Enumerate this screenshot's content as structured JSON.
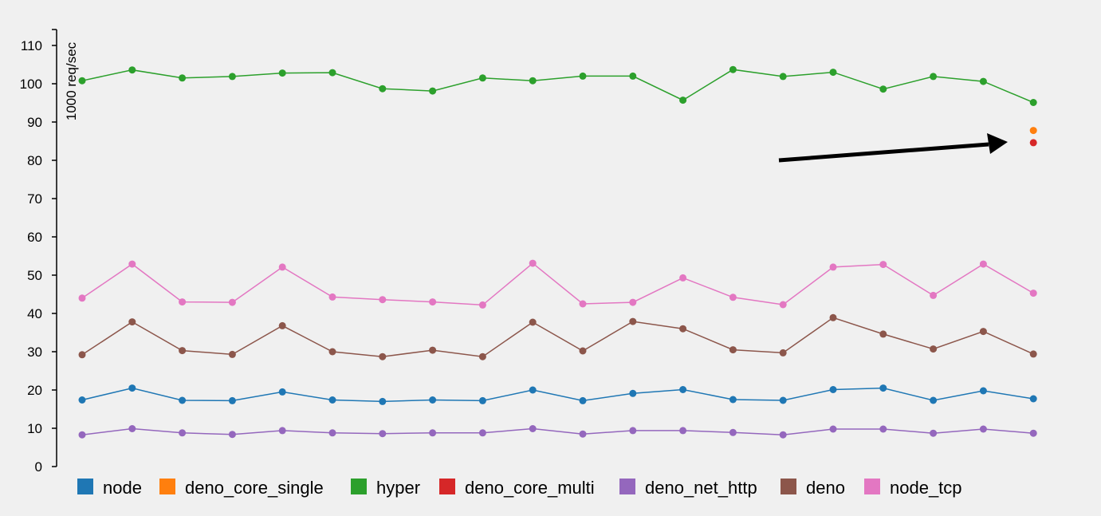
{
  "chart_data": {
    "type": "line",
    "ylabel": "1000 req/sec",
    "ylim": [
      0,
      115
    ],
    "yticks": [
      0,
      10,
      20,
      30,
      40,
      50,
      60,
      70,
      80,
      90,
      100,
      110
    ],
    "x": [
      1,
      2,
      3,
      4,
      5,
      6,
      7,
      8,
      9,
      10,
      11,
      12,
      13,
      14,
      15,
      16,
      17,
      18,
      19,
      20
    ],
    "series": [
      {
        "name": "node",
        "color": "#1f77b4",
        "values": [
          17.4,
          20.5,
          17.3,
          17.2,
          19.5,
          17.4,
          17.0,
          17.4,
          17.2,
          20.0,
          17.2,
          19.1,
          20.1,
          17.5,
          17.3,
          20.1,
          20.5,
          17.3,
          19.8,
          17.7
        ]
      },
      {
        "name": "deno_core_single",
        "color": "#ff7f0e",
        "values": [
          null,
          null,
          null,
          null,
          null,
          null,
          null,
          null,
          null,
          null,
          null,
          null,
          null,
          null,
          null,
          null,
          null,
          null,
          null,
          87.8
        ]
      },
      {
        "name": "hyper",
        "color": "#2ca02c",
        "values": [
          100.8,
          103.6,
          101.5,
          101.9,
          102.8,
          102.9,
          98.7,
          98.1,
          101.5,
          100.8,
          102.0,
          102.0,
          95.7,
          103.7,
          101.9,
          103.0,
          98.6,
          101.9,
          100.6,
          95.1
        ]
      },
      {
        "name": "deno_core_multi",
        "color": "#d62728",
        "values": [
          null,
          null,
          null,
          null,
          null,
          null,
          null,
          null,
          null,
          null,
          null,
          null,
          null,
          null,
          null,
          null,
          null,
          null,
          null,
          84.6
        ]
      },
      {
        "name": "deno_net_http",
        "color": "#9467bd",
        "values": [
          8.3,
          9.9,
          8.8,
          8.4,
          9.4,
          8.8,
          8.6,
          8.8,
          8.8,
          9.9,
          8.5,
          9.4,
          9.4,
          8.9,
          8.3,
          9.8,
          9.8,
          8.7,
          9.8,
          8.7
        ]
      },
      {
        "name": "deno",
        "color": "#8c564b",
        "values": [
          29.2,
          37.8,
          30.3,
          29.3,
          36.8,
          30.0,
          28.7,
          30.4,
          28.7,
          37.7,
          30.2,
          37.9,
          36.0,
          30.5,
          29.7,
          38.9,
          34.6,
          30.7,
          35.3,
          29.4
        ]
      },
      {
        "name": "node_tcp",
        "color": "#e377c2",
        "values": [
          44.0,
          52.9,
          43.0,
          42.9,
          52.1,
          44.3,
          43.6,
          43.0,
          42.2,
          53.1,
          42.5,
          42.9,
          49.3,
          44.2,
          42.3,
          52.1,
          52.8,
          44.7,
          52.9,
          45.3
        ]
      }
    ],
    "grid": false,
    "legend_position": "bottom"
  }
}
